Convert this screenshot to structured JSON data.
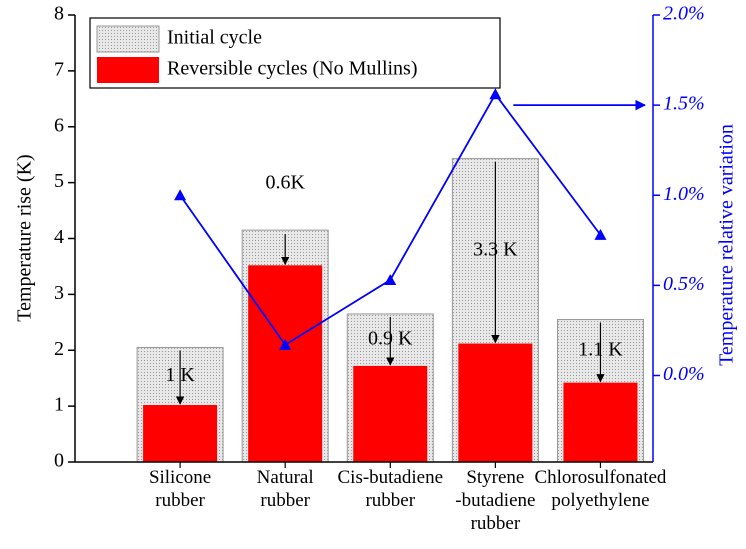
{
  "chart_data": {
    "type": "bar",
    "categories": [
      "Silicone\nrubber",
      "Natural\nrubber",
      "Cis-butadiene\nrubber",
      "Styrene\n-butadiene\nrubber",
      "Chlorosulfonated\npolyethylene"
    ],
    "ylabel": "Temperature rise (K)",
    "y2label": "Temperature relative variation",
    "ylim": [
      0,
      8
    ],
    "yticks": [
      0,
      1,
      2,
      3,
      4,
      5,
      6,
      7,
      8
    ],
    "y2lim": [
      -0.48,
      2.0
    ],
    "y2ticks": [
      {
        "value": 0,
        "label": "0.0%"
      },
      {
        "value": 0.5,
        "label": "0.5%"
      },
      {
        "value": 1.0,
        "label": "1.0%"
      },
      {
        "value": 1.5,
        "label": "1.5%"
      },
      {
        "value": 2.0,
        "label": "2.0%"
      }
    ],
    "legend": "upper left",
    "series": [
      {
        "name": "Initial cycle",
        "type": "bar",
        "color": "#d9d9d9",
        "values": [
          2.05,
          4.15,
          2.65,
          5.43,
          2.55
        ]
      },
      {
        "name": "Reversible cycles (No Mullins)",
        "type": "bar",
        "color": "#ff0000",
        "values": [
          1.02,
          3.52,
          1.72,
          2.12,
          1.42
        ]
      },
      {
        "type": "line",
        "axis": "y2",
        "color": "#0000ff",
        "values": [
          1.0,
          0.17,
          0.53,
          1.56,
          0.78
        ]
      }
    ],
    "annotations": [
      "1 K",
      "0.6K",
      "0.9 K",
      "3.3 K",
      "1.1 K"
    ]
  }
}
